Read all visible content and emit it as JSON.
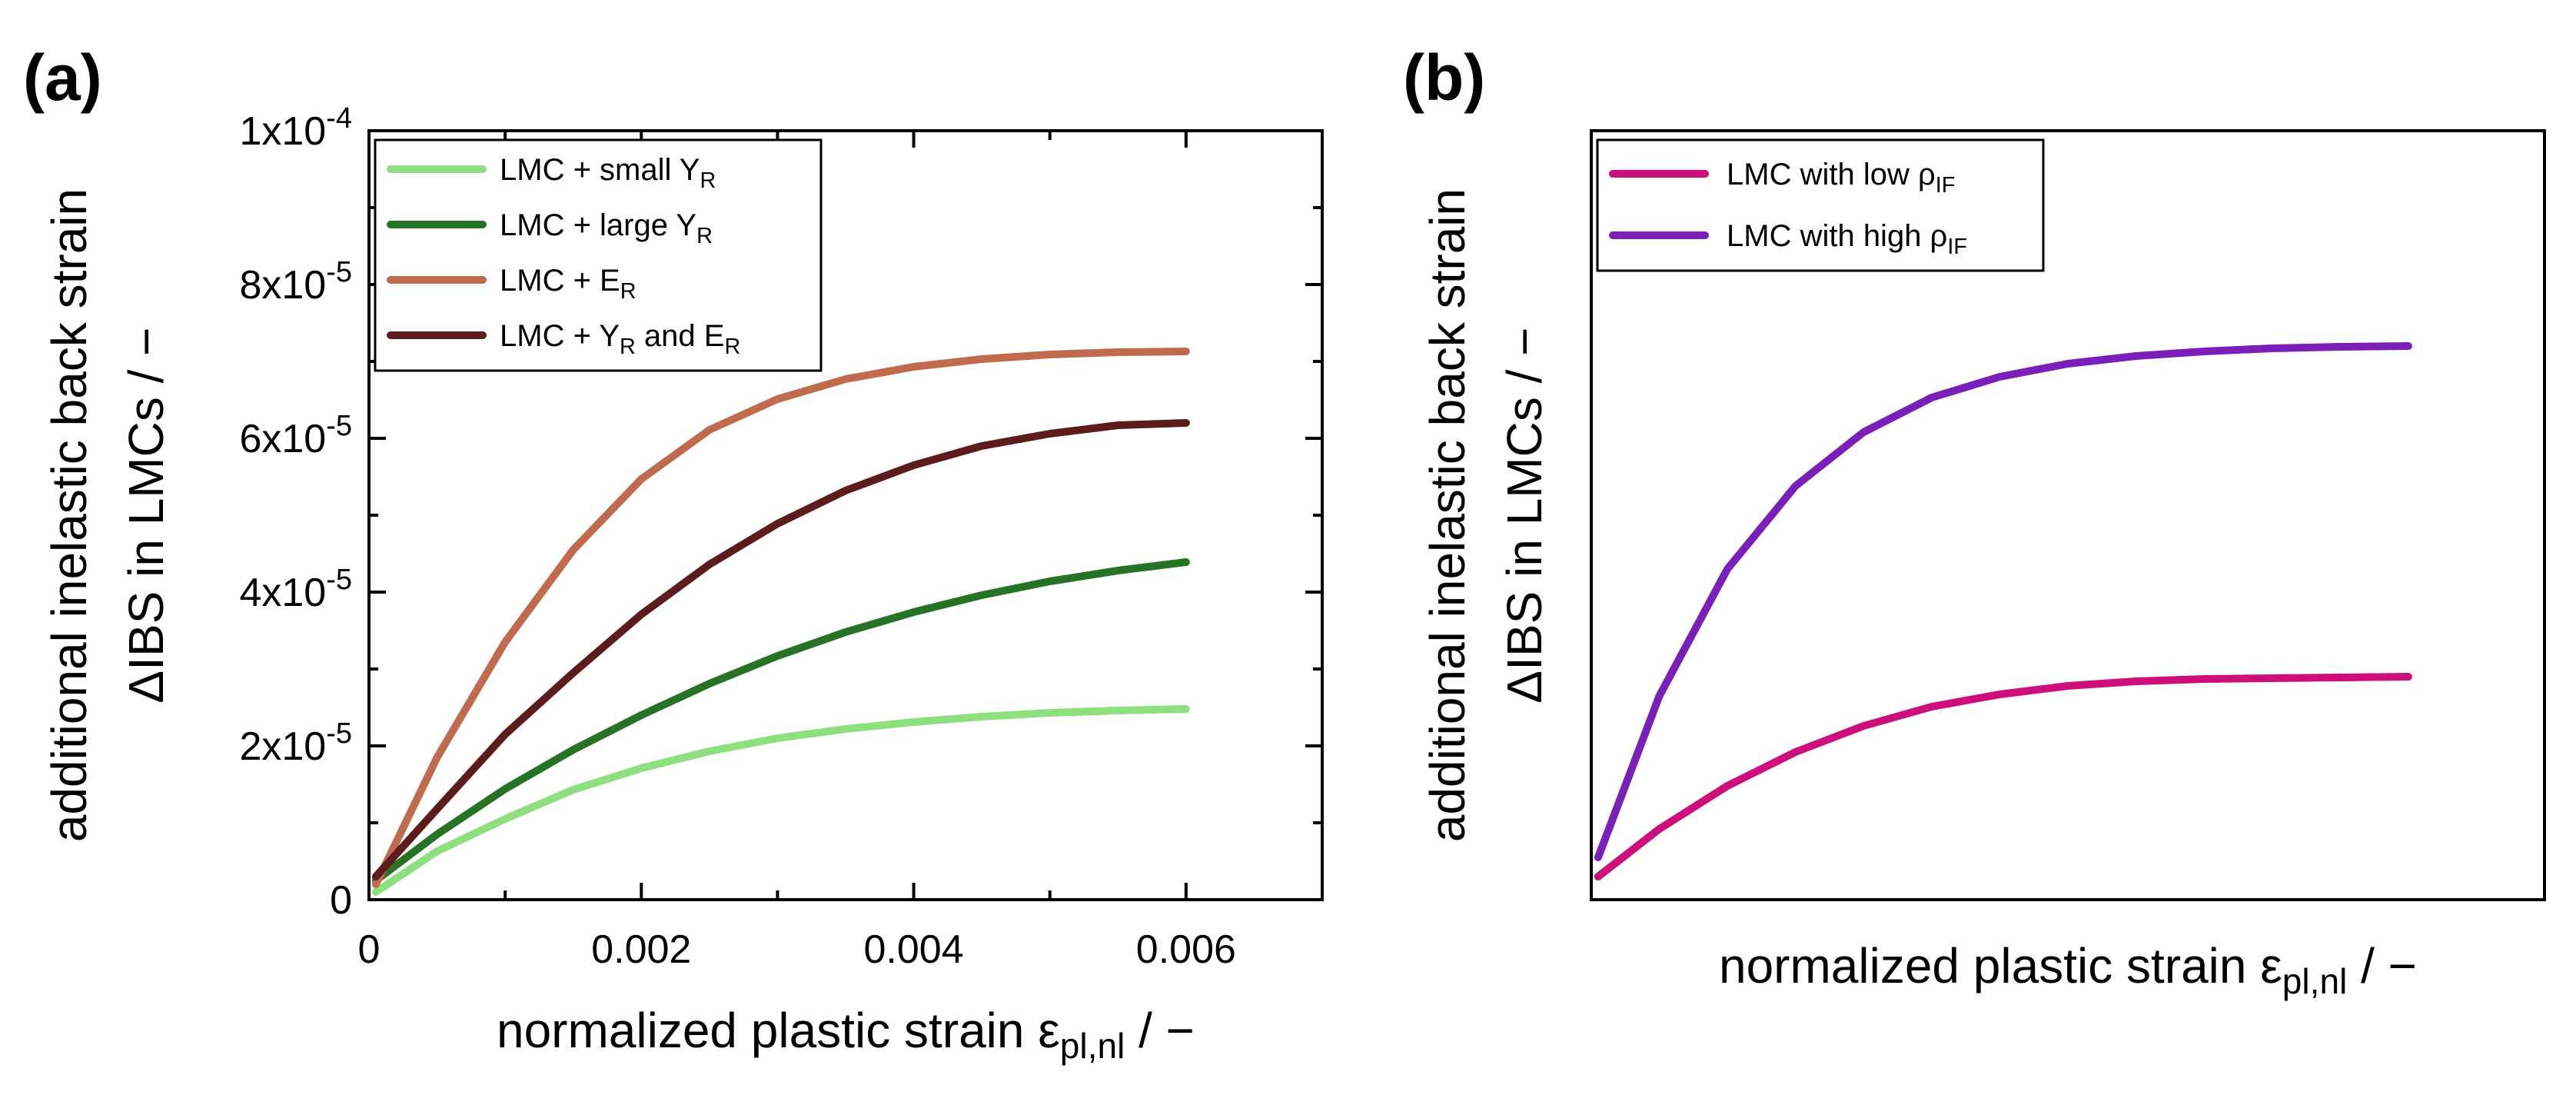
{
  "chart_data": [
    {
      "panel": "(a)",
      "type": "line",
      "xlabel_main": "normalized plastic strain ",
      "xlabel_symbol": "ε",
      "xlabel_sub": "pl,nl",
      "xlabel_tail": " / −",
      "ylabel_line1": "additional inelastic back strain",
      "ylabel_line2": "ΔIBS in LMCs / −",
      "xlim": [
        0,
        0.007
      ],
      "ylim": [
        0,
        0.0001
      ],
      "x_ticks": [
        {
          "value": 0,
          "label": "0"
        },
        {
          "value": 0.002,
          "label": "0.002"
        },
        {
          "value": 0.004,
          "label": "0.004"
        },
        {
          "value": 0.006,
          "label": "0.006"
        }
      ],
      "y_ticks": [
        {
          "value": 0,
          "label": "0",
          "exp": ""
        },
        {
          "value": 2e-05,
          "label": "2x10",
          "exp": "-5"
        },
        {
          "value": 4e-05,
          "label": "4x10",
          "exp": "-5"
        },
        {
          "value": 6e-05,
          "label": "6x10",
          "exp": "-5"
        },
        {
          "value": 8e-05,
          "label": "8x10",
          "exp": "-5"
        },
        {
          "value": 0.0001,
          "label": "1x10",
          "exp": "-4"
        }
      ],
      "legend_position": "top-left",
      "series": [
        {
          "name": "LMC + small Y",
          "name_sub": "R",
          "name_tail": "",
          "color": "#8ee07f",
          "x": [
            5e-05,
            0.0005,
            0.001,
            0.0015,
            0.002,
            0.0025,
            0.003,
            0.0035,
            0.004,
            0.0045,
            0.005,
            0.0055,
            0.006
          ],
          "y": [
            1e-06,
            6.3e-06,
            1.05e-05,
            1.43e-05,
            1.71e-05,
            1.93e-05,
            2.1e-05,
            2.22e-05,
            2.31e-05,
            2.38e-05,
            2.43e-05,
            2.46e-05,
            2.48e-05
          ]
        },
        {
          "name": "LMC + large Y",
          "name_sub": "R",
          "name_tail": "",
          "color": "#267325",
          "x": [
            5e-05,
            0.0005,
            0.001,
            0.0015,
            0.002,
            0.0025,
            0.003,
            0.0035,
            0.004,
            0.0045,
            0.005,
            0.0055,
            0.006
          ],
          "y": [
            2.5e-06,
            8.5e-06,
            1.44e-05,
            1.95e-05,
            2.4e-05,
            2.81e-05,
            3.17e-05,
            3.48e-05,
            3.74e-05,
            3.96e-05,
            4.14e-05,
            4.28e-05,
            4.39e-05
          ]
        },
        {
          "name": "LMC + E",
          "name_sub": "R",
          "name_tail": "",
          "color": "#c06b4d",
          "x": [
            5e-05,
            0.0005,
            0.001,
            0.0015,
            0.002,
            0.0025,
            0.003,
            0.0035,
            0.004,
            0.0045,
            0.005,
            0.0055,
            0.006
          ],
          "y": [
            2e-06,
            1.85e-05,
            3.35e-05,
            4.55e-05,
            5.47e-05,
            6.11e-05,
            6.51e-05,
            6.77e-05,
            6.93e-05,
            7.03e-05,
            7.09e-05,
            7.12e-05,
            7.13e-05
          ]
        },
        {
          "name": "LMC + Y",
          "name_sub": "R",
          "name_tail": " and E",
          "name_sub2": "R",
          "color": "#5c1c1c",
          "x": [
            5e-05,
            0.0005,
            0.001,
            0.0015,
            0.002,
            0.0025,
            0.003,
            0.0035,
            0.004,
            0.0045,
            0.005,
            0.0055,
            0.006
          ],
          "y": [
            3e-06,
            1.18e-05,
            2.15e-05,
            2.95e-05,
            3.71e-05,
            4.36e-05,
            4.89e-05,
            5.32e-05,
            5.65e-05,
            5.9e-05,
            6.06e-05,
            6.17e-05,
            6.2e-05
          ]
        }
      ]
    },
    {
      "panel": "(b)",
      "type": "line",
      "xlabel_main": "normalized plastic strain ",
      "xlabel_symbol": "ε",
      "xlabel_sub": "pl,nl",
      "xlabel_tail": " / −",
      "ylabel_line1": "additional inelastic back strain",
      "ylabel_line2": "ΔIBS in LMCs / −",
      "xlim": [
        0,
        0.007
      ],
      "ylim": [
        0,
        0.0001
      ],
      "x_ticks": [],
      "y_ticks": [],
      "legend_position": "top-left",
      "series": [
        {
          "name": "LMC with low ρ",
          "name_sub": "IF",
          "name_tail": "",
          "color": "#cc0f7a",
          "x": [
            5e-05,
            0.0005,
            0.001,
            0.0015,
            0.002,
            0.0025,
            0.003,
            0.0035,
            0.004,
            0.0045,
            0.005,
            0.0055,
            0.006
          ],
          "y": [
            3e-06,
            9.2e-06,
            1.48e-05,
            1.92e-05,
            2.26e-05,
            2.51e-05,
            2.67e-05,
            2.78e-05,
            2.84e-05,
            2.87e-05,
            2.88e-05,
            2.89e-05,
            2.9e-05
          ]
        },
        {
          "name": "LMC with high ρ",
          "name_sub": "IF",
          "name_tail": "",
          "color": "#7a1fb8",
          "x": [
            5e-05,
            0.0005,
            0.001,
            0.0015,
            0.002,
            0.0025,
            0.003,
            0.0035,
            0.004,
            0.0045,
            0.005,
            0.0055,
            0.006
          ],
          "y": [
            5.5e-06,
            2.65e-05,
            4.3e-05,
            5.38e-05,
            6.08e-05,
            6.53e-05,
            6.8e-05,
            6.97e-05,
            7.07e-05,
            7.13e-05,
            7.17e-05,
            7.19e-05,
            7.2e-05
          ]
        }
      ]
    }
  ]
}
